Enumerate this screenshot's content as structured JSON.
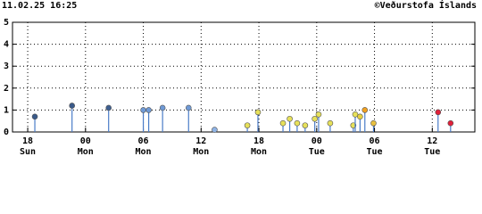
{
  "chart_data": {
    "type": "stem",
    "timestamp": "11.02.25 16:25",
    "credit": "©Veðurstofa Íslands",
    "x": [
      18.74,
      22.6,
      26.4,
      30.0,
      30.56,
      32.0,
      34.7,
      37.4,
      40.8,
      41.9,
      44.5,
      45.2,
      45.97,
      46.8,
      47.8,
      48.2,
      49.4,
      51.8,
      52.0,
      52.5,
      53.0,
      53.9,
      60.6,
      61.9
    ],
    "values": [
      0.7,
      1.2,
      1.1,
      1.0,
      1.0,
      1.1,
      1.1,
      0.1,
      0.3,
      0.9,
      0.4,
      0.6,
      0.4,
      0.3,
      0.6,
      0.8,
      0.4,
      0.3,
      0.8,
      0.7,
      1.0,
      0.4,
      0.9,
      0.4
    ],
    "colors": [
      "#3a5a8a",
      "#3a5a8a",
      "#3e5f90",
      "#6f9ad6",
      "#6f9ad6",
      "#6f9ad6",
      "#6f9ad6",
      "#8fb4e6",
      "#e6e05a",
      "#e6e05a",
      "#e6e05a",
      "#e6e05a",
      "#e6e05a",
      "#e6e05a",
      "#e6e05a",
      "#e6e05a",
      "#e6e05a",
      "#e6e05a",
      "#e6e05a",
      "#e6d040",
      "#f0a020",
      "#e8c040",
      "#e0203a",
      "#e0203a"
    ],
    "stem_color": "#4a7cc8",
    "xlim": [
      16.42,
      64.42
    ],
    "ylim": [
      0,
      5
    ],
    "yticks": [
      0,
      1,
      2,
      3,
      4,
      5
    ],
    "xticks": [
      {
        "value": 18,
        "label": "18"
      },
      {
        "value": 24,
        "label": "00"
      },
      {
        "value": 30,
        "label": "06"
      },
      {
        "value": 36,
        "label": "12"
      },
      {
        "value": 42,
        "label": "18"
      },
      {
        "value": 48,
        "label": "00"
      },
      {
        "value": 54,
        "label": "06"
      },
      {
        "value": 60,
        "label": "12"
      }
    ],
    "xtick_days": [
      "Sun",
      "Mon",
      "Mon",
      "Mon",
      "Mon",
      "Tue",
      "Tue",
      "Tue"
    ],
    "grid": true
  }
}
